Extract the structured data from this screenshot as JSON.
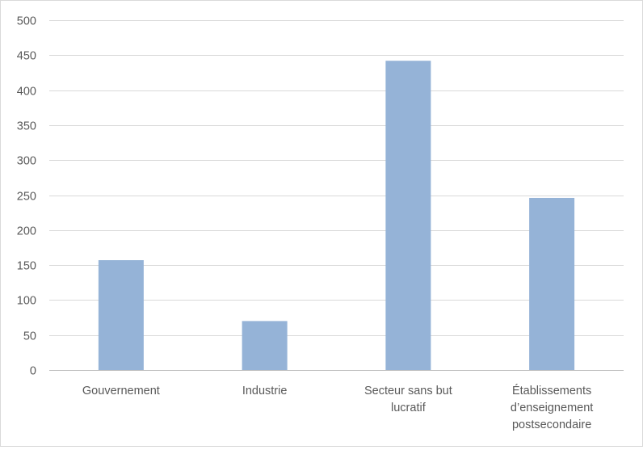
{
  "chart_data": {
    "type": "bar",
    "title": "",
    "xlabel": "",
    "ylabel": "",
    "categories": [
      [
        "Gouvernement"
      ],
      [
        "Industrie"
      ],
      [
        "Secteur sans but",
        "lucratif"
      ],
      [
        "Établissements",
        "d’enseignement",
        "postsecondaire"
      ]
    ],
    "values": [
      157,
      70,
      442,
      246
    ],
    "ylim": [
      0,
      500
    ],
    "yticks": [
      0,
      50,
      100,
      150,
      200,
      250,
      300,
      350,
      400,
      450,
      500
    ],
    "grid": true,
    "legend": "none",
    "colors": {
      "bar": "#95b3d7",
      "grid": "#d9d9d9",
      "axis": "#bfbfbf",
      "text": "#595959"
    }
  }
}
